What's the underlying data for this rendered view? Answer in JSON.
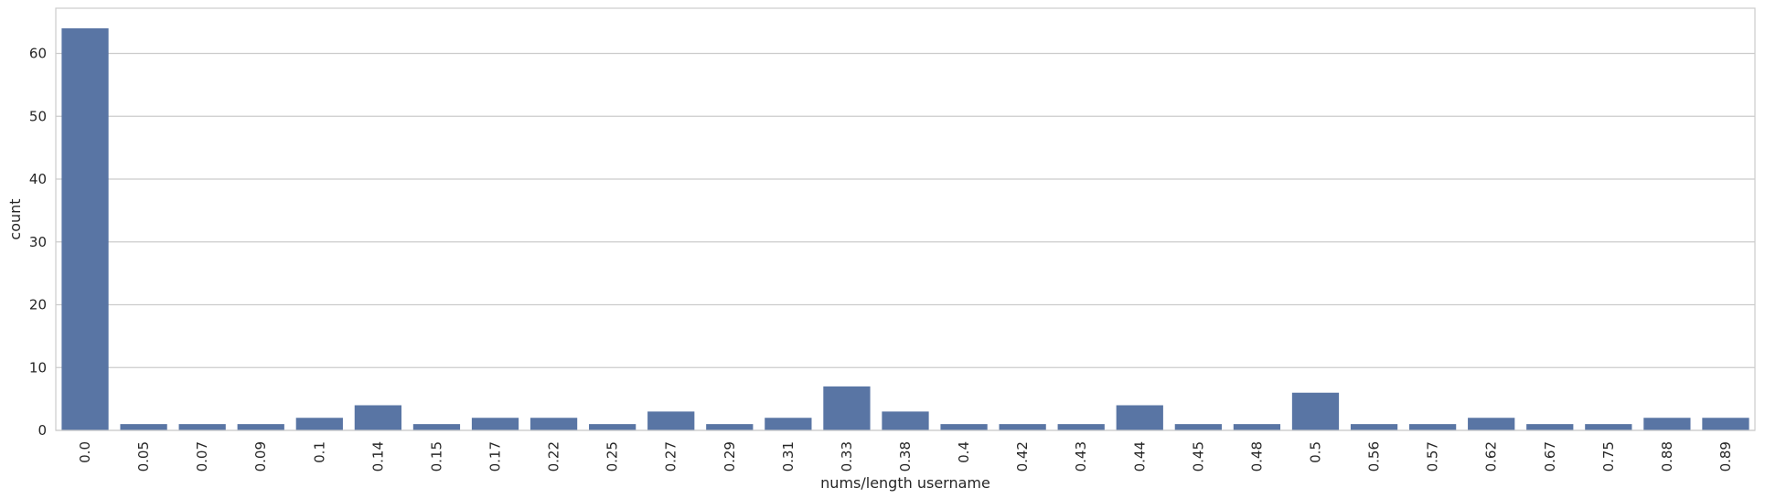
{
  "chart_data": {
    "type": "bar",
    "xlabel": "nums/length username",
    "ylabel": "count",
    "categories": [
      "0.0",
      "0.05",
      "0.07",
      "0.09",
      "0.1",
      "0.14",
      "0.15",
      "0.17",
      "0.22",
      "0.25",
      "0.27",
      "0.29",
      "0.31",
      "0.33",
      "0.38",
      "0.4",
      "0.42",
      "0.43",
      "0.44",
      "0.45",
      "0.48",
      "0.5",
      "0.56",
      "0.57",
      "0.62",
      "0.67",
      "0.75",
      "0.88",
      "0.89"
    ],
    "values": [
      64,
      1,
      1,
      1,
      2,
      4,
      1,
      2,
      2,
      1,
      3,
      1,
      2,
      7,
      3,
      1,
      1,
      1,
      4,
      1,
      1,
      6,
      1,
      1,
      2,
      1,
      1,
      2,
      2
    ],
    "ylim": [
      0,
      67.2
    ],
    "yticks": [
      0,
      10,
      20,
      30,
      40,
      50,
      60
    ],
    "grid": true,
    "bar_color": "#5975a4",
    "grid_color": "#cccccc",
    "frame_color": "#cccccc"
  }
}
